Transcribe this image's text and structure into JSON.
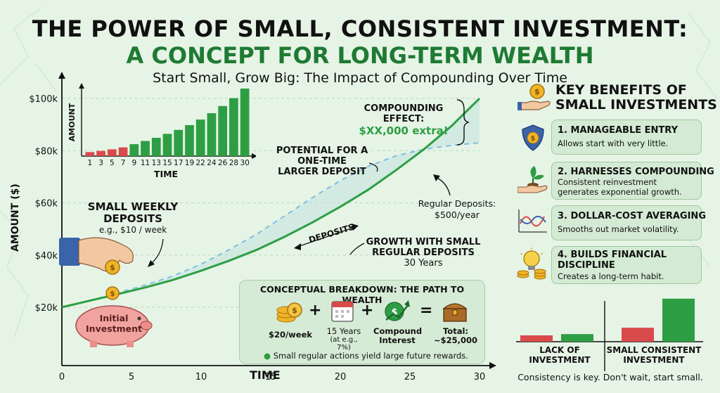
{
  "title": {
    "line1": "THE POWER OF SMALL, CONSISTENT INVESTMENT:",
    "line2": "A CONCEPT FOR LONG-TERM WEALTH",
    "subtitle": "Start Small, Grow Big: The Impact of Compounding Over Time"
  },
  "colors": {
    "green": "#2e9e44",
    "dark_green": "#1f7a33",
    "dashed_blue": "#7fbfe0",
    "red": "#d94a4a",
    "area": "#c2e2df"
  },
  "chart_data": [
    {
      "type": "line",
      "title": "",
      "xlabel": "TIME",
      "ylabel": "AMOUNT ($)",
      "xlim": [
        0,
        30
      ],
      "ylim": [
        20000,
        100000
      ],
      "x_ticks": [
        "0",
        "5",
        "10",
        "15",
        "20",
        "25",
        "30"
      ],
      "y_ticks": [
        "$20k",
        "$40k",
        "$60k",
        "$80k",
        "$100k"
      ],
      "grid": true,
      "series": [
        {
          "name": "GROWTH WITH SMALL REGULAR DEPOSITS",
          "style": "solid",
          "x": [
            0,
            2,
            4,
            6,
            8,
            10,
            12,
            14,
            16,
            18,
            20,
            22,
            24,
            26,
            28,
            30
          ],
          "y": [
            20000,
            22500,
            25000,
            27600,
            30500,
            34000,
            37800,
            42000,
            47000,
            52500,
            58500,
            65000,
            72500,
            80500,
            89500,
            100000
          ]
        },
        {
          "name": "POTENTIAL FOR A ONE-TIME LARGER DEPOSIT",
          "style": "dashed",
          "x": [
            0,
            2,
            4,
            6,
            8,
            10,
            12,
            14,
            16,
            18,
            20,
            22,
            24,
            26,
            28,
            30
          ],
          "y": [
            20000,
            22500,
            25500,
            28500,
            32000,
            36500,
            42000,
            48000,
            55000,
            62000,
            68500,
            74000,
            78000,
            80500,
            82000,
            83000
          ]
        }
      ],
      "annotations": {
        "compounding_title": "COMPOUNDING EFFECT:",
        "compounding_value": "$XX,000 extra!",
        "potential": "POTENTIAL FOR A ONE-TIME LARGER DEPOSIT",
        "regular_deposits_1": "Regular Deposits:",
        "regular_deposits_2": "$500/year",
        "deposits_arrow": "DEPOSITS",
        "growth_1": "GROWTH WITH SMALL",
        "growth_2": "REGULAR DEPOSITS",
        "growth_3": "30 Years",
        "weekly_1": "SMALL WEEKLY",
        "weekly_2": "DEPOSITS",
        "weekly_3": "e.g., $10 / week",
        "initial_1": "Initial",
        "initial_2": "Investment"
      }
    },
    {
      "type": "bar",
      "xlabel": "TIME",
      "ylabel": "AMOUNT",
      "categories": [
        "1",
        "3",
        "5",
        "7",
        "9",
        "11",
        "13",
        "15",
        "17",
        "19",
        "22",
        "24",
        "26",
        "28",
        "30"
      ],
      "values": [
        1,
        1.3,
        1.7,
        2.2,
        3,
        3.8,
        4.6,
        5.6,
        6.6,
        7.8,
        9.2,
        10.8,
        12.6,
        14.6,
        17
      ],
      "colors": [
        "#d94a4a",
        "#d94a4a",
        "#d94a4a",
        "#d94a4a",
        "#2e9e44",
        "#2e9e44",
        "#2e9e44",
        "#2e9e44",
        "#2e9e44",
        "#2e9e44",
        "#2e9e44",
        "#2e9e44",
        "#2e9e44",
        "#2e9e44",
        "#2e9e44"
      ]
    },
    {
      "type": "bar",
      "categories": [
        "LACK OF INVESTMENT",
        "SMALL CONSISTENT INVESTMENT"
      ],
      "series": [
        {
          "values": [
            1,
            2.2
          ],
          "color": "#d94a4a"
        },
        {
          "values": [
            1.2,
            6.8
          ],
          "color": "#2e9e44"
        }
      ]
    }
  ],
  "breakdown": {
    "title": "CONCEPTUAL BREAKDOWN: THE PATH TO WEALTH",
    "item1": "$20/week",
    "item2a": "15 Years",
    "item2b": "(at e.g., 7%)",
    "item3a": "Compound",
    "item3b": "Interest",
    "item4a": "Total:",
    "item4b": "~$25,000",
    "plus": "+",
    "equals": "=",
    "note": "Small regular actions yield large future rewards."
  },
  "benefits": {
    "header1": "KEY BENEFITS OF",
    "header2": "SMALL INVESTMENTS",
    "items": [
      {
        "title": "1. MANAGEABLE ENTRY",
        "desc": "Allows start with very little."
      },
      {
        "title": "2. HARNESSES COMPOUNDING",
        "desc": "Consistent reinvestment generates exponential growth."
      },
      {
        "title": "3. DOLLAR-COST AVERAGING",
        "desc": "Smooths out market volatility."
      },
      {
        "title": "4. BUILDS FINANCIAL DISCIPLINE",
        "desc": "Creates a long-term habit."
      }
    ]
  },
  "footer": "Consistency is key. Don't wait, start small.",
  "icons": [
    "hand-coin-icon",
    "shield-coin-icon",
    "plant-hand-icon",
    "wave-chart-icon",
    "lightbulb-coins-icon",
    "coin-stack-icon",
    "calendar-icon",
    "growth-chart-icon",
    "treasure-chest-icon",
    "piggy-bank-icon",
    "hand-drop-coin-icon"
  ]
}
